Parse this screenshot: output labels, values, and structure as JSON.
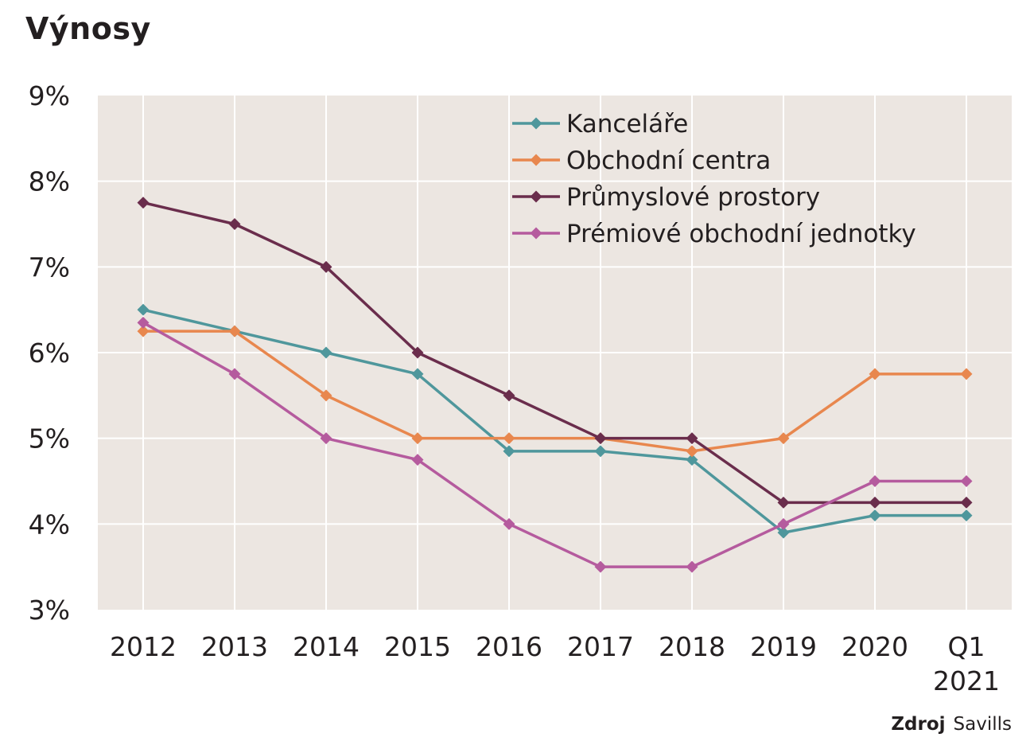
{
  "title": "Výnosy",
  "source": {
    "label": "Zdroj",
    "value": "Savills"
  },
  "chart_data": {
    "type": "line",
    "title": "Výnosy",
    "xlabel": "",
    "ylabel": "",
    "categories": [
      "2012",
      "2013",
      "2014",
      "2015",
      "2016",
      "2017",
      "2018",
      "2019",
      "2020",
      "Q1 2021"
    ],
    "category_lines": [
      [
        "2012"
      ],
      [
        "2013"
      ],
      [
        "2014"
      ],
      [
        "2015"
      ],
      [
        "2016"
      ],
      [
        "2017"
      ],
      [
        "2018"
      ],
      [
        "2019"
      ],
      [
        "2020"
      ],
      [
        "Q1",
        "2021"
      ]
    ],
    "ylim": [
      3,
      9
    ],
    "yticks": [
      3,
      4,
      5,
      6,
      7,
      8,
      9
    ],
    "ytick_labels": [
      "3%",
      "4%",
      "5%",
      "6%",
      "7%",
      "8%",
      "9%"
    ],
    "grid": true,
    "legend_position": "top-right",
    "plot_background": "#ece6e1",
    "series": [
      {
        "name": "Kanceláře",
        "color": "#4f979c",
        "values": [
          6.5,
          6.25,
          6.0,
          5.75,
          4.85,
          4.85,
          4.75,
          3.9,
          4.1,
          4.1
        ]
      },
      {
        "name": "Obchodní centra",
        "color": "#e8874e",
        "values": [
          6.25,
          6.25,
          5.5,
          5.0,
          5.0,
          5.0,
          4.85,
          5.0,
          5.75,
          5.75
        ]
      },
      {
        "name": "Průmyslové prostory",
        "color": "#6a2d4c",
        "values": [
          7.75,
          7.5,
          7.0,
          6.0,
          5.5,
          5.0,
          5.0,
          4.25,
          4.25,
          4.25
        ]
      },
      {
        "name": "Prémiové obchodní jednotky",
        "color": "#b55b9e",
        "values": [
          6.35,
          5.75,
          5.0,
          4.75,
          4.0,
          3.5,
          3.5,
          4.0,
          4.5,
          4.5
        ]
      }
    ]
  }
}
